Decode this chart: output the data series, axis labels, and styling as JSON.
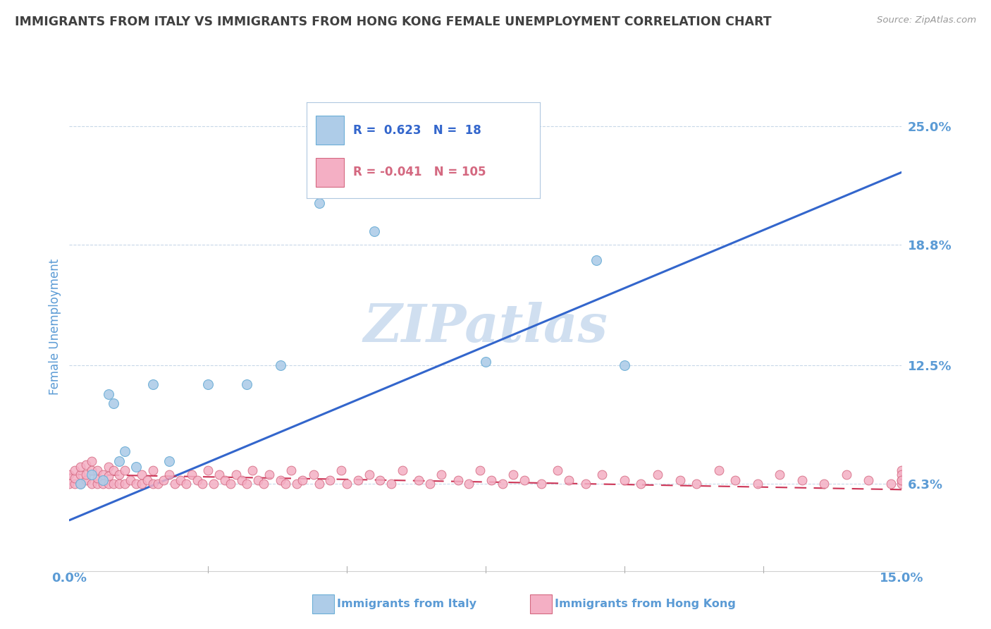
{
  "title": "IMMIGRANTS FROM ITALY VS IMMIGRANTS FROM HONG KONG FEMALE UNEMPLOYMENT CORRELATION CHART",
  "source": "Source: ZipAtlas.com",
  "ylabel": "Female Unemployment",
  "xlim": [
    0.0,
    0.15
  ],
  "ylim": [
    0.02,
    0.27
  ],
  "yticks": [
    0.063,
    0.125,
    0.188,
    0.25
  ],
  "ytick_labels": [
    "6.3%",
    "12.5%",
    "18.8%",
    "25.0%"
  ],
  "xtick_labels": [
    "0.0%",
    "15.0%"
  ],
  "legend_italy": "Immigrants from Italy",
  "legend_hk": "Immigrants from Hong Kong",
  "R_italy": "0.623",
  "N_italy": "18",
  "R_hk": "-0.041",
  "N_hk": "105",
  "italy_color": "#aecce8",
  "italy_edge": "#6baed6",
  "hk_color": "#f4afc4",
  "hk_edge": "#d46880",
  "trendline_italy_color": "#3366cc",
  "trendline_hk_color": "#cc3355",
  "background_color": "#ffffff",
  "title_color": "#404040",
  "axis_label_color": "#5b9bd5",
  "tick_color": "#5b9bd5",
  "watermark": "ZIPatlas",
  "watermark_color": "#d0dff0",
  "grid_color": "#c8d8e8",
  "italy_x": [
    0.002,
    0.004,
    0.006,
    0.007,
    0.008,
    0.009,
    0.01,
    0.012,
    0.015,
    0.018,
    0.025,
    0.032,
    0.038,
    0.045,
    0.055,
    0.075,
    0.095,
    0.1
  ],
  "italy_y": [
    0.063,
    0.068,
    0.065,
    0.11,
    0.105,
    0.075,
    0.08,
    0.072,
    0.115,
    0.075,
    0.115,
    0.115,
    0.125,
    0.21,
    0.195,
    0.127,
    0.18,
    0.125
  ],
  "hk_x": [
    0.0,
    0.0,
    0.001,
    0.001,
    0.001,
    0.002,
    0.002,
    0.002,
    0.003,
    0.003,
    0.003,
    0.004,
    0.004,
    0.004,
    0.005,
    0.005,
    0.005,
    0.006,
    0.006,
    0.007,
    0.007,
    0.007,
    0.008,
    0.008,
    0.009,
    0.009,
    0.01,
    0.01,
    0.011,
    0.012,
    0.013,
    0.013,
    0.014,
    0.015,
    0.015,
    0.016,
    0.017,
    0.018,
    0.019,
    0.02,
    0.021,
    0.022,
    0.023,
    0.024,
    0.025,
    0.026,
    0.027,
    0.028,
    0.029,
    0.03,
    0.031,
    0.032,
    0.033,
    0.034,
    0.035,
    0.036,
    0.038,
    0.039,
    0.04,
    0.041,
    0.042,
    0.044,
    0.045,
    0.047,
    0.049,
    0.05,
    0.052,
    0.054,
    0.056,
    0.058,
    0.06,
    0.063,
    0.065,
    0.067,
    0.07,
    0.072,
    0.074,
    0.076,
    0.078,
    0.08,
    0.082,
    0.085,
    0.088,
    0.09,
    0.093,
    0.096,
    0.1,
    0.103,
    0.106,
    0.11,
    0.113,
    0.117,
    0.12,
    0.124,
    0.128,
    0.132,
    0.136,
    0.14,
    0.144,
    0.148,
    0.15,
    0.15,
    0.15,
    0.15,
    0.15
  ],
  "hk_y": [
    0.063,
    0.068,
    0.063,
    0.066,
    0.07,
    0.063,
    0.068,
    0.072,
    0.065,
    0.068,
    0.073,
    0.063,
    0.07,
    0.075,
    0.063,
    0.066,
    0.07,
    0.063,
    0.068,
    0.063,
    0.067,
    0.072,
    0.063,
    0.07,
    0.063,
    0.068,
    0.063,
    0.07,
    0.065,
    0.063,
    0.063,
    0.068,
    0.065,
    0.063,
    0.07,
    0.063,
    0.065,
    0.068,
    0.063,
    0.065,
    0.063,
    0.068,
    0.065,
    0.063,
    0.07,
    0.063,
    0.068,
    0.065,
    0.063,
    0.068,
    0.065,
    0.063,
    0.07,
    0.065,
    0.063,
    0.068,
    0.065,
    0.063,
    0.07,
    0.063,
    0.065,
    0.068,
    0.063,
    0.065,
    0.07,
    0.063,
    0.065,
    0.068,
    0.065,
    0.063,
    0.07,
    0.065,
    0.063,
    0.068,
    0.065,
    0.063,
    0.07,
    0.065,
    0.063,
    0.068,
    0.065,
    0.063,
    0.07,
    0.065,
    0.063,
    0.068,
    0.065,
    0.063,
    0.068,
    0.065,
    0.063,
    0.07,
    0.065,
    0.063,
    0.068,
    0.065,
    0.063,
    0.068,
    0.065,
    0.063,
    0.065,
    0.07,
    0.063,
    0.068,
    0.065
  ]
}
